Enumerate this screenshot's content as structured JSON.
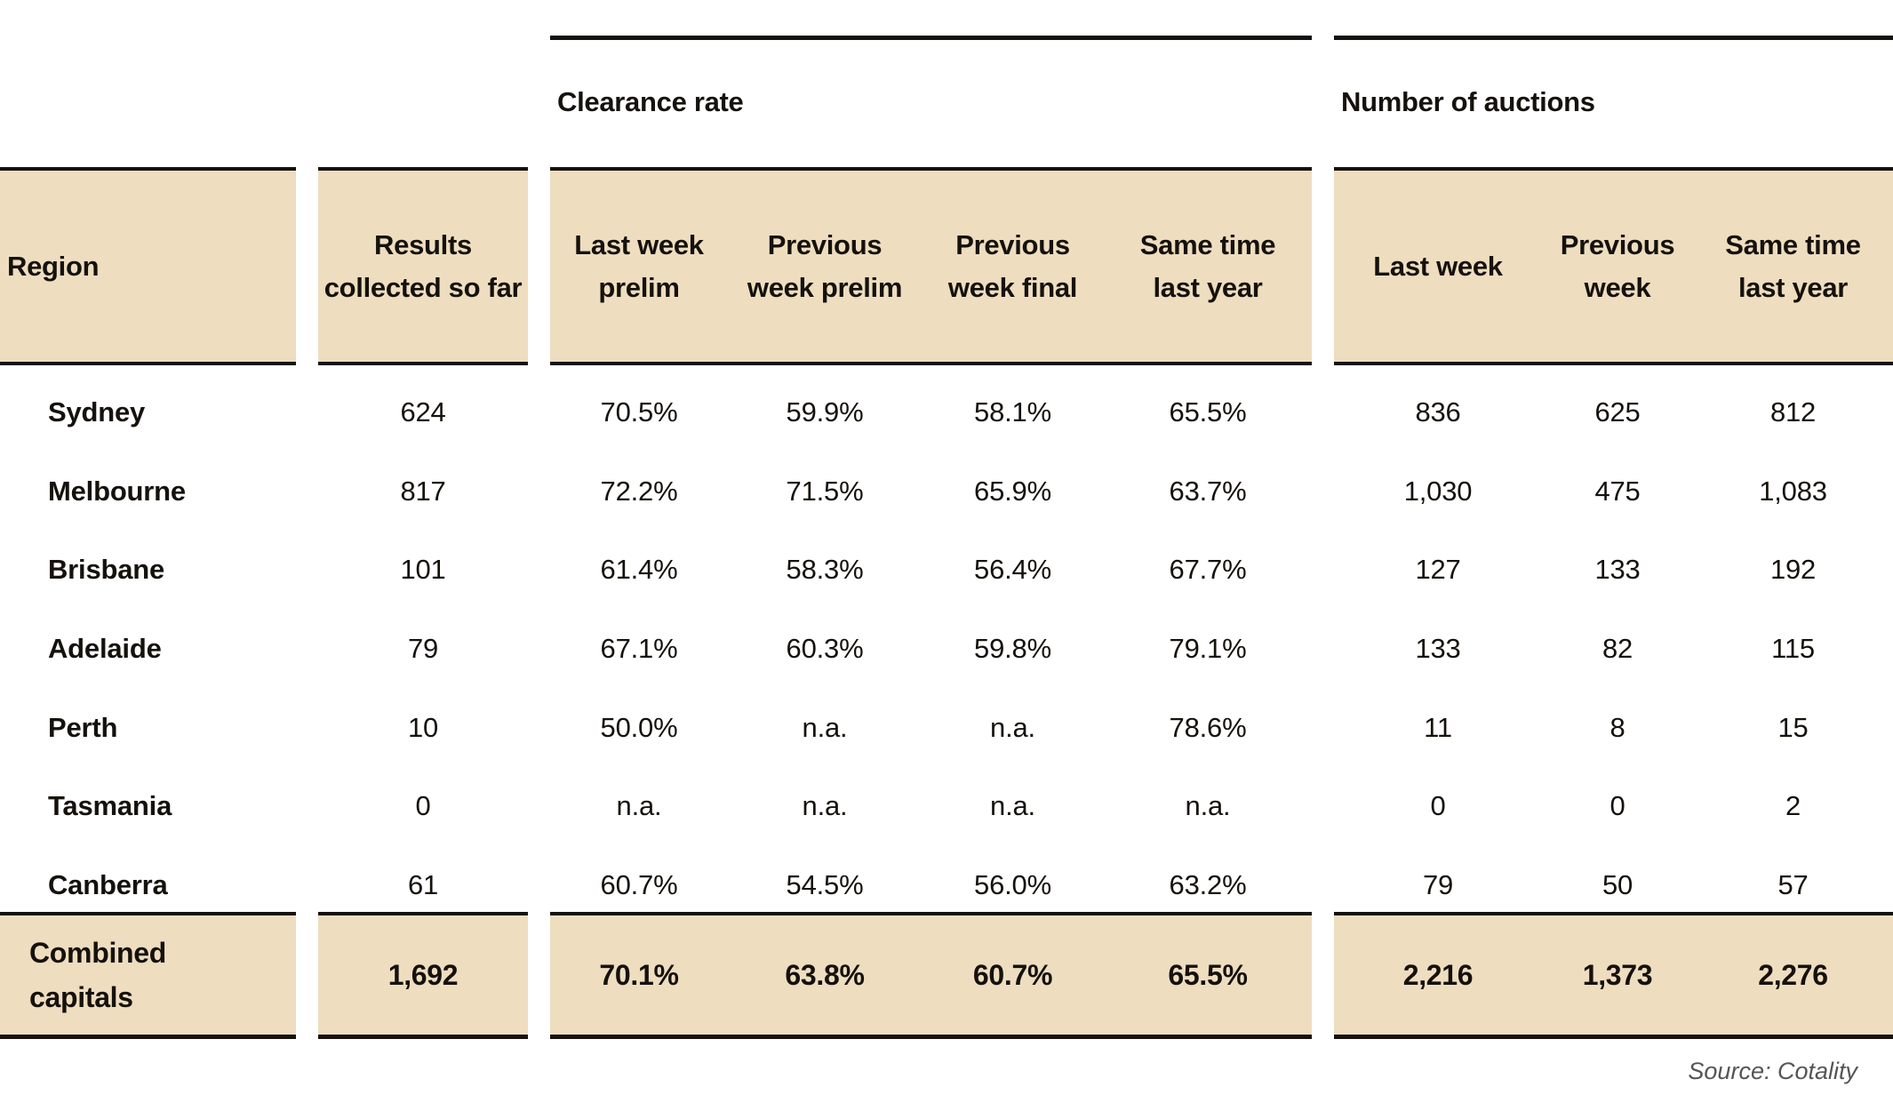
{
  "groups": {
    "clearance_rate": "Clearance rate",
    "number_of_auctions": "Number of auctions"
  },
  "headers": [
    "Region",
    "Results collected so far",
    "Last week prelim",
    "Previous week prelim",
    "Previous week final",
    "Same time last year",
    "Last week",
    "Previous week",
    "Same time last year"
  ],
  "rows": [
    [
      "Sydney",
      "624",
      "70.5%",
      "59.9%",
      "58.1%",
      "65.5%",
      "836",
      "625",
      "812"
    ],
    [
      "Melbourne",
      "817",
      "72.2%",
      "71.5%",
      "65.9%",
      "63.7%",
      "1,030",
      "475",
      "1,083"
    ],
    [
      "Brisbane",
      "101",
      "61.4%",
      "58.3%",
      "56.4%",
      "67.7%",
      "127",
      "133",
      "192"
    ],
    [
      "Adelaide",
      "79",
      "67.1%",
      "60.3%",
      "59.8%",
      "79.1%",
      "133",
      "82",
      "115"
    ],
    [
      "Perth",
      "10",
      "50.0%",
      "n.a.",
      "n.a.",
      "78.6%",
      "11",
      "8",
      "15"
    ],
    [
      "Tasmania",
      "0",
      "n.a.",
      "n.a.",
      "n.a.",
      "n.a.",
      "0",
      "0",
      "2"
    ],
    [
      "Canberra",
      "61",
      "60.7%",
      "54.5%",
      "56.0%",
      "63.2%",
      "79",
      "50",
      "57"
    ]
  ],
  "footer": [
    "Combined capitals",
    "1,692",
    "70.1%",
    "63.8%",
    "60.7%",
    "65.5%",
    "2,216",
    "1,373",
    "2,276"
  ],
  "source": "Source: Cotality",
  "colors": {
    "band": "#eeddbf",
    "rule": "#15110c",
    "text": "#15110c",
    "source": "#555555"
  }
}
